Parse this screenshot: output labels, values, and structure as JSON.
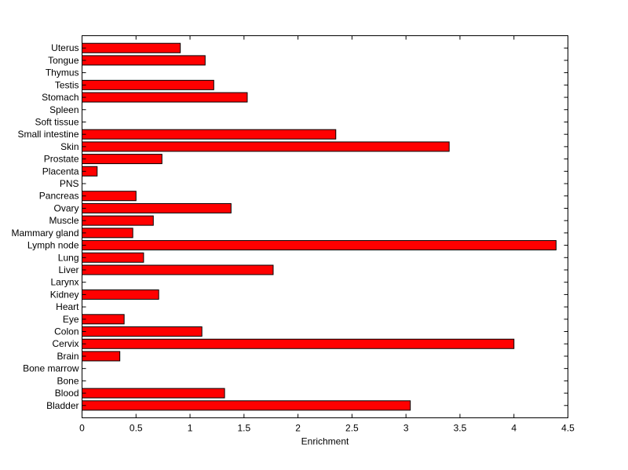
{
  "chart_data": {
    "type": "bar",
    "orientation": "horizontal",
    "title": "",
    "xlabel": "Enrichment",
    "ylabel": "",
    "xlim": [
      0,
      4.5
    ],
    "xticks": [
      "0",
      "0.5",
      "1",
      "1.5",
      "2",
      "2.5",
      "3",
      "3.5",
      "4",
      "4.5"
    ],
    "grid": false,
    "bar_color": "#ff0000",
    "bar_edge_color": "#000000",
    "categories": [
      "Bladder",
      "Blood",
      "Bone",
      "Bone marrow",
      "Brain",
      "Cervix",
      "Colon",
      "Eye",
      "Heart",
      "Kidney",
      "Larynx",
      "Liver",
      "Lung",
      "Lymph node",
      "Mammary gland",
      "Muscle",
      "Ovary",
      "Pancreas",
      "PNS",
      "Placenta",
      "Prostate",
      "Skin",
      "Small intestine",
      "Soft tissue",
      "Spleen",
      "Stomach",
      "Testis",
      "Thymus",
      "Tongue",
      "Uterus"
    ],
    "values": [
      3.04,
      1.32,
      0,
      0,
      0.35,
      4.0,
      1.11,
      0.39,
      0,
      0.71,
      0,
      1.77,
      0.57,
      4.39,
      0.47,
      0.66,
      1.38,
      0.5,
      0,
      0.14,
      0.74,
      3.4,
      2.35,
      0,
      0,
      1.53,
      1.22,
      0,
      1.14,
      0.91
    ]
  }
}
